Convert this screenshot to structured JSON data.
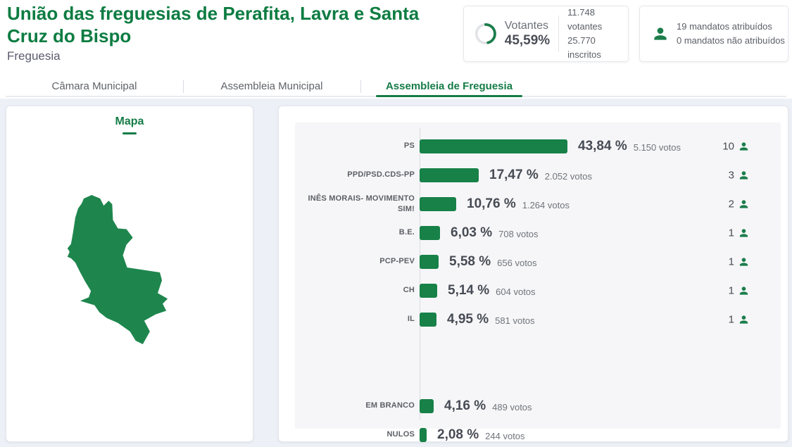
{
  "header": {
    "title": "União das freguesias de Perafita, Lavra e Santa Cruz do Bispo",
    "subtitle": "Freguesia"
  },
  "turnout": {
    "label": "Votantes",
    "percent_label": "45,59%",
    "percent_value": 45.59,
    "voters_line": "11.748 votantes",
    "registered_line": "25.770 inscritos"
  },
  "mandates_summary": {
    "assigned_line": "19 mandatos atribuídos",
    "unassigned_line": "0 mandatos não atribuídos"
  },
  "tabs": [
    {
      "label": "Câmara Municipal",
      "active": false
    },
    {
      "label": "Assembleia Municipal",
      "active": false
    },
    {
      "label": "Assembleia de Freguesia",
      "active": true
    }
  ],
  "map": {
    "title": "Mapa"
  },
  "chart_data": {
    "type": "bar",
    "orientation": "horizontal",
    "unit": "percent of votes",
    "xlim": [
      0,
      45
    ],
    "grid": false,
    "rows": [
      {
        "party": "PS",
        "percent": 43.84,
        "percent_label": "43,84 %",
        "votes": 5150,
        "votes_label": "5.150 votos",
        "mandates": 10
      },
      {
        "party": "PPD/PSD.CDS-PP",
        "percent": 17.47,
        "percent_label": "17,47 %",
        "votes": 2052,
        "votes_label": "2.052 votos",
        "mandates": 3
      },
      {
        "party": "INÊS MORAIS- MOVIMENTO SIM!",
        "percent": 10.76,
        "percent_label": "10,76 %",
        "votes": 1264,
        "votes_label": "1.264 votos",
        "mandates": 2
      },
      {
        "party": "B.E.",
        "percent": 6.03,
        "percent_label": "6,03 %",
        "votes": 708,
        "votes_label": "708 votos",
        "mandates": 1
      },
      {
        "party": "PCP-PEV",
        "percent": 5.58,
        "percent_label": "5,58 %",
        "votes": 656,
        "votes_label": "656 votos",
        "mandates": 1
      },
      {
        "party": "CH",
        "percent": 5.14,
        "percent_label": "5,14 %",
        "votes": 604,
        "votes_label": "604 votos",
        "mandates": 1
      },
      {
        "party": "IL",
        "percent": 4.95,
        "percent_label": "4,95 %",
        "votes": 581,
        "votes_label": "581 votos",
        "mandates": 1
      },
      {
        "party": "EM BRANCO",
        "percent": 4.16,
        "percent_label": "4,16 %",
        "votes": 489,
        "votes_label": "489 votos",
        "mandates": null,
        "gap_before": true
      },
      {
        "party": "NULOS",
        "percent": 2.08,
        "percent_label": "2,08 %",
        "votes": 244,
        "votes_label": "244 votos",
        "mandates": null
      }
    ]
  },
  "colors": {
    "title_green": "#0d7c42",
    "bar_green": "#178148",
    "icon_green": "#1b7d4b",
    "map_green": "#1e864d",
    "active_tab_green": "#157c47",
    "page_background": "#edf1f7",
    "chart_panel_background": "#f6f6f8"
  }
}
